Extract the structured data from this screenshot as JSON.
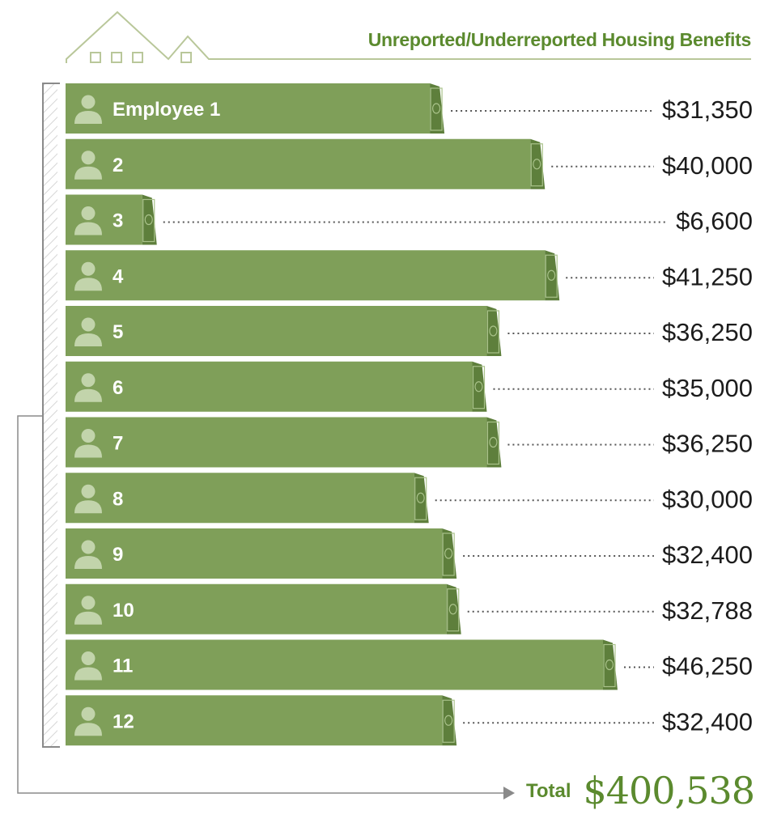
{
  "header": {
    "title": "Unreported/Underreported Housing Benefits"
  },
  "colors": {
    "bar": "#7f9f59",
    "bar_dark": "#5e7f3c",
    "accent": "#5b8a2e",
    "outline": "#b9c79a",
    "avatar": "#c2d4ab",
    "bracket": "#8a8a8a",
    "text": "#1c1c1c"
  },
  "icons": {
    "employee": "person-icon",
    "money": "money-stack-icon",
    "house": "house-outline-icon",
    "arrow": "arrow-right-icon"
  },
  "chart_data": {
    "type": "bar",
    "orientation": "horizontal",
    "title": "Unreported/Underreported Housing Benefits",
    "categories": [
      "Employee 1",
      "2",
      "3",
      "4",
      "5",
      "6",
      "7",
      "8",
      "9",
      "10",
      "11",
      "12"
    ],
    "values": [
      31350,
      40000,
      6600,
      41250,
      36250,
      35000,
      36250,
      30000,
      32400,
      32788,
      46250,
      32400
    ],
    "value_labels": [
      "$31,350",
      "$40,000",
      "$6,600",
      "$41,250",
      "$36,250",
      "$35,000",
      "$36,250",
      "$30,000",
      "$32,400",
      "$32,788",
      "$46,250",
      "$32,400"
    ],
    "xlim": [
      0,
      46250
    ],
    "total_label": "Total",
    "total_value": "$400,538"
  }
}
